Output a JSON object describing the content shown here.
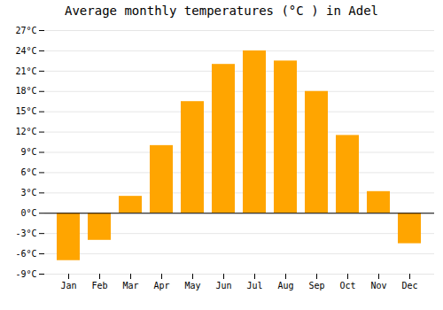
{
  "chart_data": {
    "type": "bar",
    "title": "Average monthly temperatures (°C ) in Adel",
    "categories": [
      "Jan",
      "Feb",
      "Mar",
      "Apr",
      "May",
      "Jun",
      "Jul",
      "Aug",
      "Sep",
      "Oct",
      "Nov",
      "Dec"
    ],
    "values": [
      -7.0,
      -4.0,
      2.5,
      10.0,
      16.5,
      22.0,
      24.0,
      22.5,
      18.0,
      11.5,
      3.2,
      -4.5
    ],
    "color": "#FFA500",
    "ylim": [
      -9,
      27
    ],
    "yticks": [
      {
        "value": -9,
        "label": "-9°C"
      },
      {
        "value": -6,
        "label": "-6°C"
      },
      {
        "value": -3,
        "label": "-3°C"
      },
      {
        "value": 0,
        "label": "0°C"
      },
      {
        "value": 3,
        "label": "3°C"
      },
      {
        "value": 6,
        "label": "6°C"
      },
      {
        "value": 9,
        "label": "9°C"
      },
      {
        "value": 12,
        "label": "12°C"
      },
      {
        "value": 15,
        "label": "15°C"
      },
      {
        "value": 18,
        "label": "18°C"
      },
      {
        "value": 21,
        "label": "21°C"
      },
      {
        "value": 24,
        "label": "24°C"
      },
      {
        "value": 27,
        "label": "27°C"
      }
    ],
    "grid": true
  }
}
